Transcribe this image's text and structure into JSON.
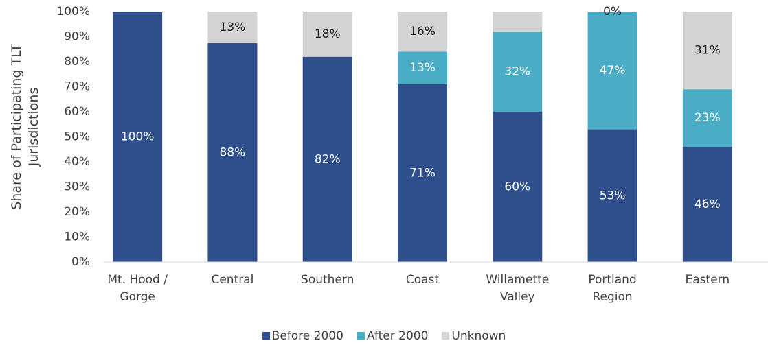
{
  "chart_data": {
    "type": "stacked_bar",
    "y_label": "Share of Participating TLT Jurisdictions",
    "categories": [
      "Mt. Hood / Gorge",
      "Central",
      "Southern",
      "Coast",
      "Willamette Valley",
      "Portland Region",
      "Eastern"
    ],
    "series": [
      {
        "name": "Before 2000",
        "color": "#2e4f8c",
        "values": [
          100,
          87.5,
          82,
          71,
          60,
          53,
          46
        ],
        "value_labels": [
          "100%",
          "88%",
          "82%",
          "71%",
          "60%",
          "53%",
          "46%"
        ]
      },
      {
        "name": "After 2000",
        "color": "#4bacc6",
        "values": [
          0,
          0,
          0,
          13,
          32,
          47,
          23
        ],
        "value_labels": [
          null,
          null,
          null,
          "13%",
          "32%",
          "47%",
          "23%"
        ]
      },
      {
        "name": "Unknown",
        "color": "#d3d3d3",
        "values": [
          0,
          12.5,
          18,
          16,
          8,
          0,
          31
        ],
        "value_labels": [
          null,
          "13%",
          "18%",
          "16%",
          null,
          "0%",
          "31%"
        ]
      }
    ],
    "ylim": [
      0,
      100
    ],
    "yticks": [
      {
        "value": 0,
        "label": "0%"
      },
      {
        "value": 10,
        "label": "10%"
      },
      {
        "value": 20,
        "label": "20%"
      },
      {
        "value": 30,
        "label": "30%"
      },
      {
        "value": 40,
        "label": "40%"
      },
      {
        "value": 50,
        "label": "50%"
      },
      {
        "value": 60,
        "label": "60%"
      },
      {
        "value": 70,
        "label": "70%"
      },
      {
        "value": 80,
        "label": "80%"
      },
      {
        "value": 90,
        "label": "90%"
      },
      {
        "value": 100,
        "label": "100%"
      }
    ],
    "grid": false,
    "legend": "bottom"
  }
}
